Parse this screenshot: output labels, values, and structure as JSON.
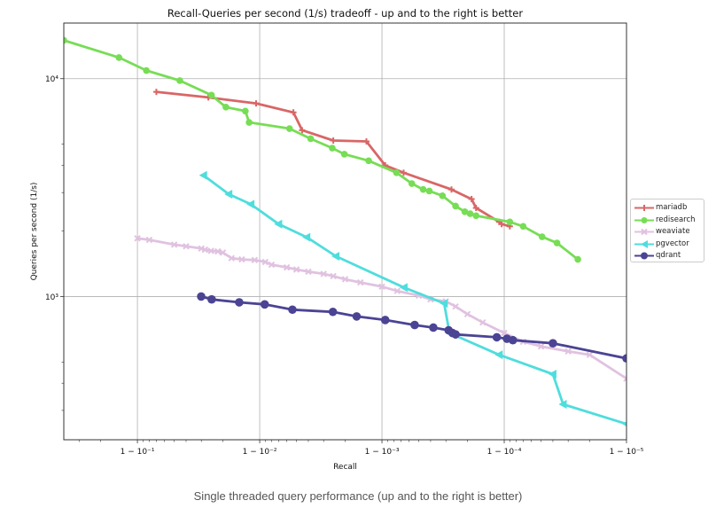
{
  "chart_data": {
    "type": "line",
    "title": "Recall-Queries per second (1/s) tradeoff - up and to the right is better",
    "xlabel": "Recall",
    "ylabel": "Queries per second (1/s)",
    "x_scale": "logit (1 - recall)",
    "y_scale": "log",
    "x_ticks": [
      {
        "value": 0.9,
        "label": "1 − 10⁻¹"
      },
      {
        "value": 0.99,
        "label": "1 − 10⁻²"
      },
      {
        "value": 0.999,
        "label": "1 − 10⁻³"
      },
      {
        "value": 0.9999,
        "label": "1 − 10⁻⁴"
      },
      {
        "value": 0.99999,
        "label": "1 − 10⁻⁵"
      }
    ],
    "y_ticks": [
      {
        "value": 1000,
        "label": "10³"
      },
      {
        "value": 10000,
        "label": "10⁴"
      }
    ],
    "xlim": [
      0.6,
      0.99999
    ],
    "ylim": [
      220,
      18000
    ],
    "grid": true,
    "legend_position": "right-center",
    "series": [
      {
        "name": "mariadb",
        "color": "#d96666",
        "marker": "plus",
        "x": [
          0.93,
          0.9737,
          0.9893,
          0.9947,
          0.9955,
          0.9975,
          0.99866,
          0.99906,
          0.999335,
          0.99973,
          0.999815,
          0.99983,
          0.99989,
          0.999895,
          0.99991
        ],
        "y": [
          8700,
          8200,
          7700,
          7000,
          5800,
          5200,
          5150,
          4000,
          3700,
          3100,
          2800,
          2550,
          2200,
          2150,
          2100
        ]
      },
      {
        "name": "redisearch",
        "color": "#77dd55",
        "marker": "circle",
        "x": [
          0.6,
          0.8585,
          0.9155,
          0.955,
          0.9752,
          0.9811,
          0.9869,
          0.9878,
          0.9943,
          0.99617,
          0.99745,
          0.99797,
          0.998715,
          0.99924,
          0.99943,
          0.99954,
          0.99959,
          0.99968,
          0.99975,
          0.99979,
          0.99981,
          0.99983,
          0.99991,
          0.99993,
          0.999951,
          0.999963,
          0.999975
        ],
        "y": [
          15000,
          12500,
          10900,
          9800,
          8400,
          7400,
          7100,
          6300,
          5900,
          5300,
          4800,
          4500,
          4200,
          3700,
          3300,
          3100,
          3050,
          2900,
          2600,
          2450,
          2400,
          2350,
          2200,
          2100,
          1880,
          1760,
          1480
        ]
      },
      {
        "name": "weaviate",
        "color": "#e0c2e0",
        "marker": "x",
        "x": [
          0.9,
          0.92,
          0.95,
          0.96,
          0.97,
          0.972,
          0.975,
          0.978,
          0.98,
          0.983,
          0.986,
          0.989,
          0.991,
          0.992,
          0.994,
          0.995,
          0.996,
          0.997,
          0.9975,
          0.998,
          0.9985,
          0.999,
          0.99925,
          0.9995,
          0.9996,
          0.9997,
          0.99975,
          0.9998,
          0.99985,
          0.9999,
          0.99993,
          0.99995,
          0.99997,
          0.99998,
          0.99999
        ],
        "y": [
          1850,
          1820,
          1730,
          1700,
          1660,
          1640,
          1620,
          1610,
          1590,
          1500,
          1480,
          1470,
          1440,
          1400,
          1360,
          1330,
          1300,
          1270,
          1240,
          1200,
          1160,
          1110,
          1060,
          1010,
          970,
          950,
          900,
          830,
          760,
          680,
          620,
          590,
          560,
          540,
          420
        ]
      },
      {
        "name": "pgvector",
        "color": "#4fdddd",
        "marker": "triangle-left",
        "x": [
          0.9712,
          0.9821,
          0.9882,
          0.993,
          0.99588,
          0.99762,
          0.99934,
          0.99969,
          0.99972,
          0.99989,
          0.99996,
          0.999967,
          0.99999
        ],
        "y": [
          3600,
          2950,
          2650,
          2150,
          1870,
          1530,
          1100,
          930,
          680,
          540,
          440,
          320,
          260
        ]
      },
      {
        "name": "qdrant",
        "color": "#4b4494",
        "marker": "circle",
        "x": [
          0.9699,
          0.9753,
          0.9853,
          0.9909,
          0.9946,
          0.99748,
          0.99839,
          0.99906,
          0.99946,
          0.99962,
          0.999715,
          0.999735,
          0.99975,
          0.999885,
          0.999905,
          0.999915,
          0.99996,
          0.99999
        ],
        "y": [
          1000,
          970,
          940,
          920,
          870,
          850,
          810,
          780,
          740,
          720,
          700,
          680,
          670,
          650,
          640,
          630,
          610,
          520
        ]
      }
    ]
  },
  "caption": "Single threaded query performance (up and to the right is better)"
}
